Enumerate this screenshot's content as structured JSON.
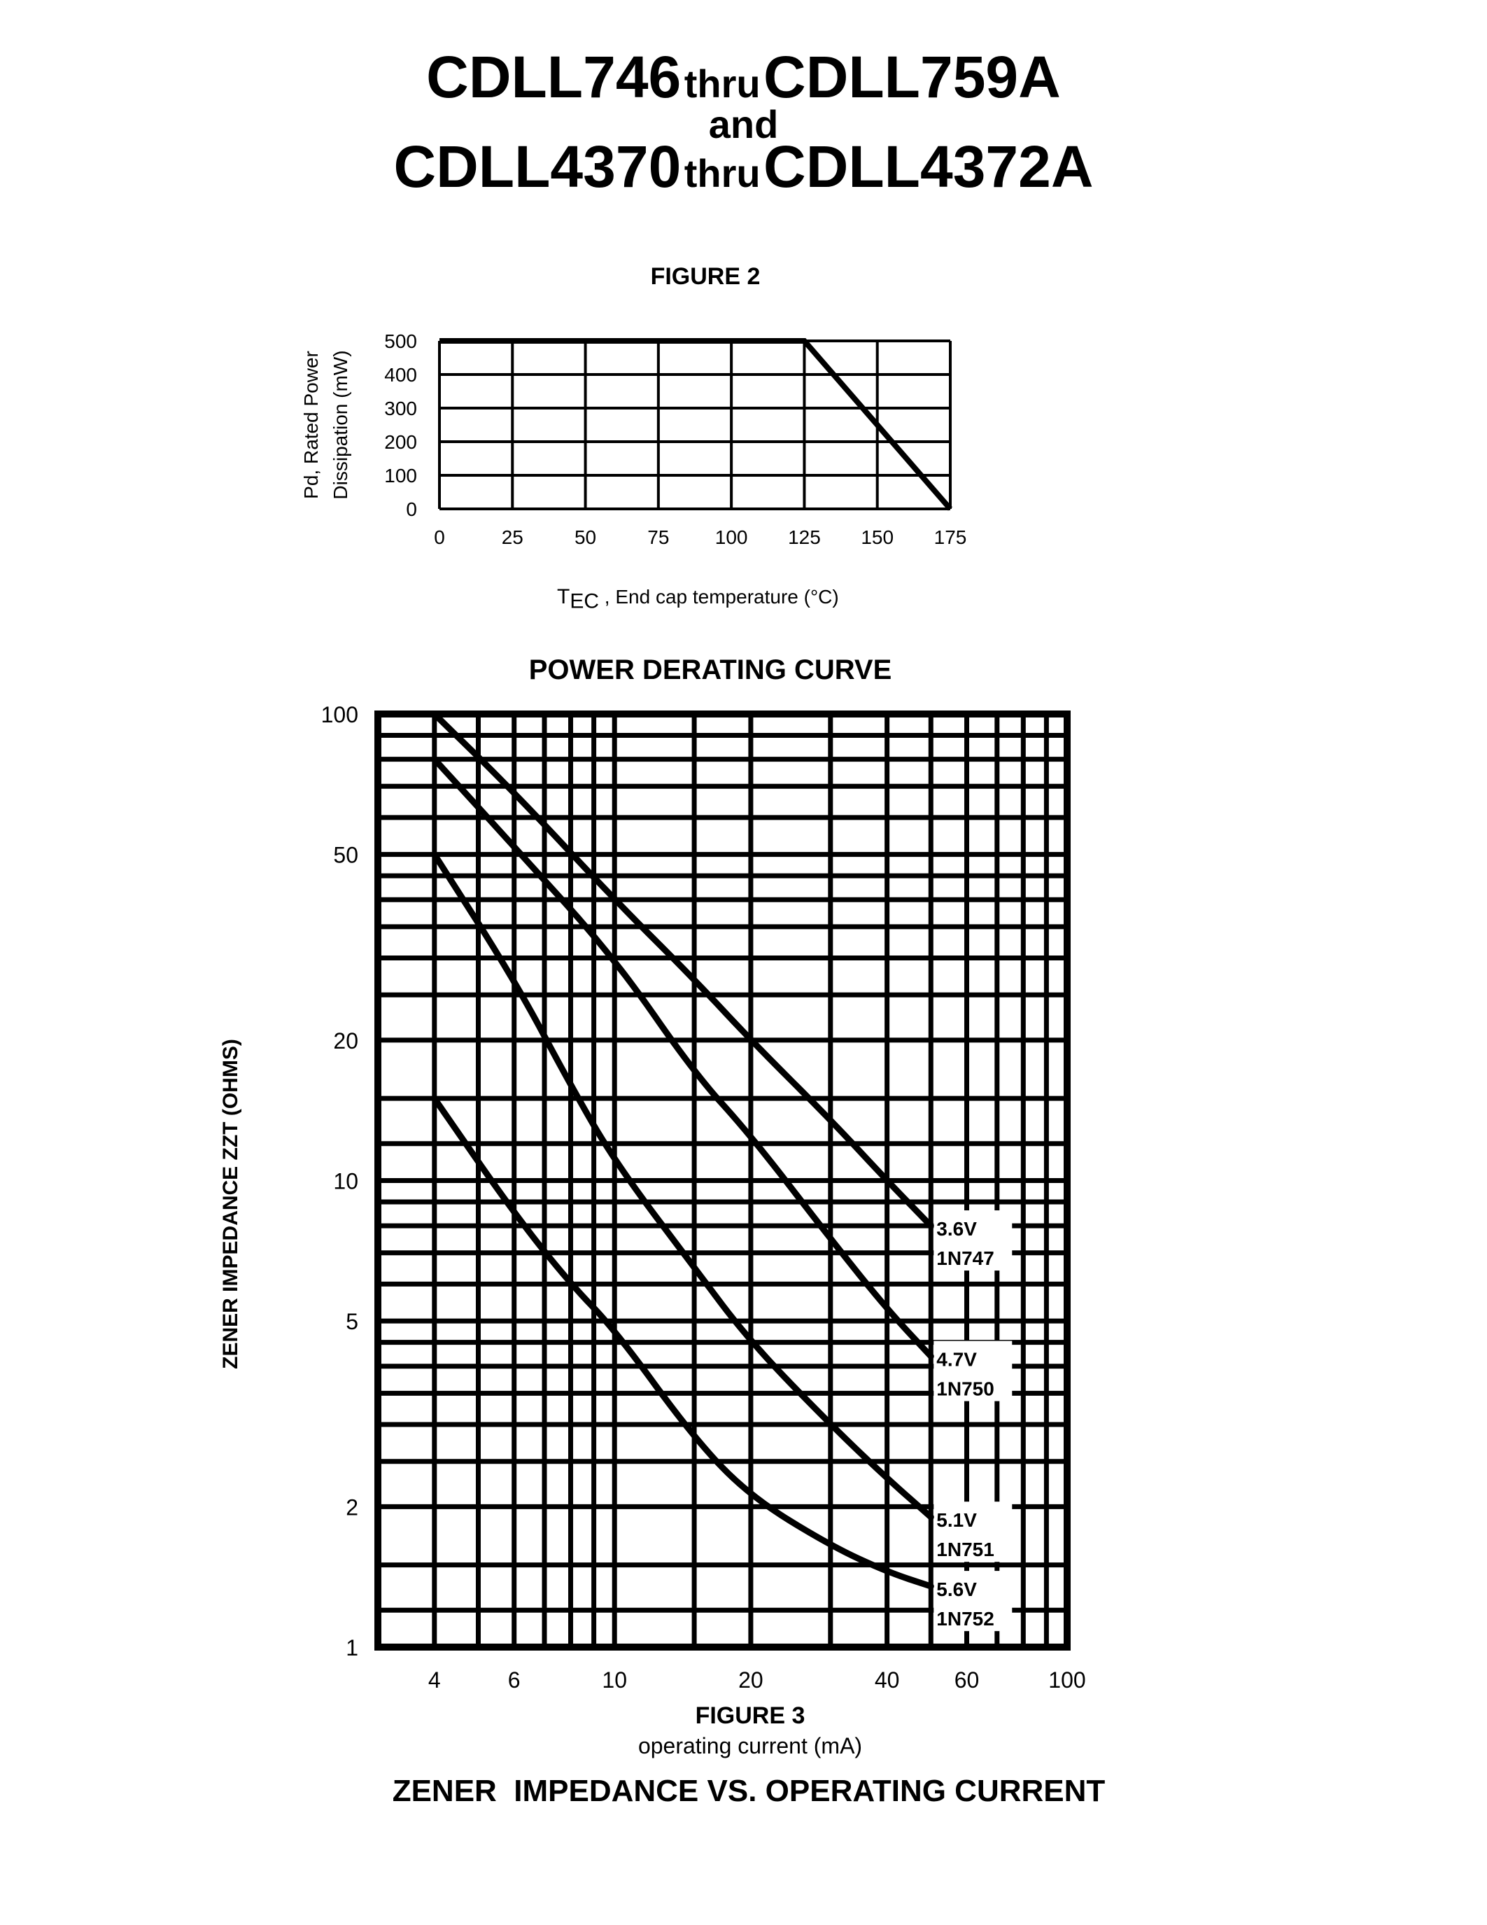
{
  "header": {
    "line1": {
      "part1": "CDLL746",
      "connector": "thru",
      "part2": "CDLL759A"
    },
    "line2": "and",
    "line3": {
      "part1": "CDLL4370",
      "connector": "thru",
      "part2": "CDLL4372A"
    }
  },
  "figure2": {
    "label": "FIGURE 2",
    "ylabel_line1": "Pd, Rated Power",
    "ylabel_line2": "Dissipation (mW)",
    "xlabel_main": "T",
    "xlabel_sub": "EC",
    "xlabel_rest": " , End cap temperature (°C)",
    "caption": "POWER DERATING CURVE"
  },
  "figure3": {
    "label": "FIGURE 3",
    "xlabel": "operating current (mA)",
    "ylabel": "ZENER IMPEDANCE ZZT (OHMS)",
    "caption": "ZENER  IMPEDANCE VS. OPERATING CURRENT"
  },
  "chart_data": [
    {
      "type": "line",
      "title": "POWER DERATING CURVE",
      "figure": "FIGURE 2",
      "xlabel": "TEC , End cap temperature (°C)",
      "ylabel": "Pd, Rated Power Dissipation (mW)",
      "xlim": [
        0,
        175
      ],
      "ylim": [
        0,
        500
      ],
      "xticks": [
        0,
        25,
        50,
        75,
        100,
        125,
        150,
        175
      ],
      "yticks": [
        0,
        100,
        200,
        300,
        400,
        500
      ],
      "grid": true,
      "series": [
        {
          "name": "Pd",
          "x": [
            0,
            125,
            175
          ],
          "y": [
            500,
            500,
            0
          ]
        }
      ]
    },
    {
      "type": "line",
      "title": "ZENER  IMPEDANCE VS. OPERATING CURRENT",
      "figure": "FIGURE 3",
      "xlabel": "operating current (mA)",
      "ylabel": "ZENER IMPEDANCE ZZT (OHMS)",
      "xscale": "log",
      "yscale": "log",
      "xlim": [
        3,
        100
      ],
      "ylim": [
        1,
        100
      ],
      "xticks": [
        4,
        6,
        10,
        20,
        40,
        60,
        100
      ],
      "yticks": [
        1,
        2,
        5,
        10,
        20,
        50,
        100
      ],
      "grid": true,
      "x_gridlines": [
        4,
        5,
        6,
        7,
        8,
        9,
        10,
        15,
        20,
        30,
        40,
        50,
        60,
        70,
        80,
        90
      ],
      "y_gridlines": [
        1.2,
        1.5,
        2,
        2.5,
        3,
        3.5,
        4,
        4.5,
        5,
        6,
        7,
        8,
        9,
        10,
        12,
        15,
        20,
        25,
        30,
        35,
        40,
        45,
        50,
        60,
        70,
        80,
        90
      ],
      "series": [
        {
          "name": "3.6V 1N747",
          "voltage": "3.6V",
          "part": "1N747",
          "x": [
            4,
            6,
            10,
            15,
            20,
            30,
            40,
            50
          ],
          "y": [
            100,
            68,
            40,
            27,
            20,
            13.5,
            10,
            8
          ]
        },
        {
          "name": "4.7V 1N750",
          "voltage": "4.7V",
          "part": "1N750",
          "x": [
            4,
            6,
            10,
            15,
            20,
            30,
            40,
            50
          ],
          "y": [
            80,
            52,
            30,
            17,
            12.5,
            7.5,
            5.3,
            4.2
          ]
        },
        {
          "name": "5.1V 1N751",
          "voltage": "5.1V",
          "part": "1N751",
          "x": [
            4,
            6,
            8,
            10,
            15,
            20,
            30,
            40,
            50
          ],
          "y": [
            50,
            27,
            16,
            11,
            6.5,
            4.5,
            3,
            2.3,
            1.9
          ]
        },
        {
          "name": "5.6V 1N752",
          "voltage": "5.6V",
          "part": "1N752",
          "x": [
            4,
            6,
            8,
            10,
            15,
            20,
            30,
            40,
            50
          ],
          "y": [
            15,
            8.5,
            6,
            4.8,
            2.8,
            2.1,
            1.65,
            1.45,
            1.35
          ]
        }
      ]
    }
  ]
}
